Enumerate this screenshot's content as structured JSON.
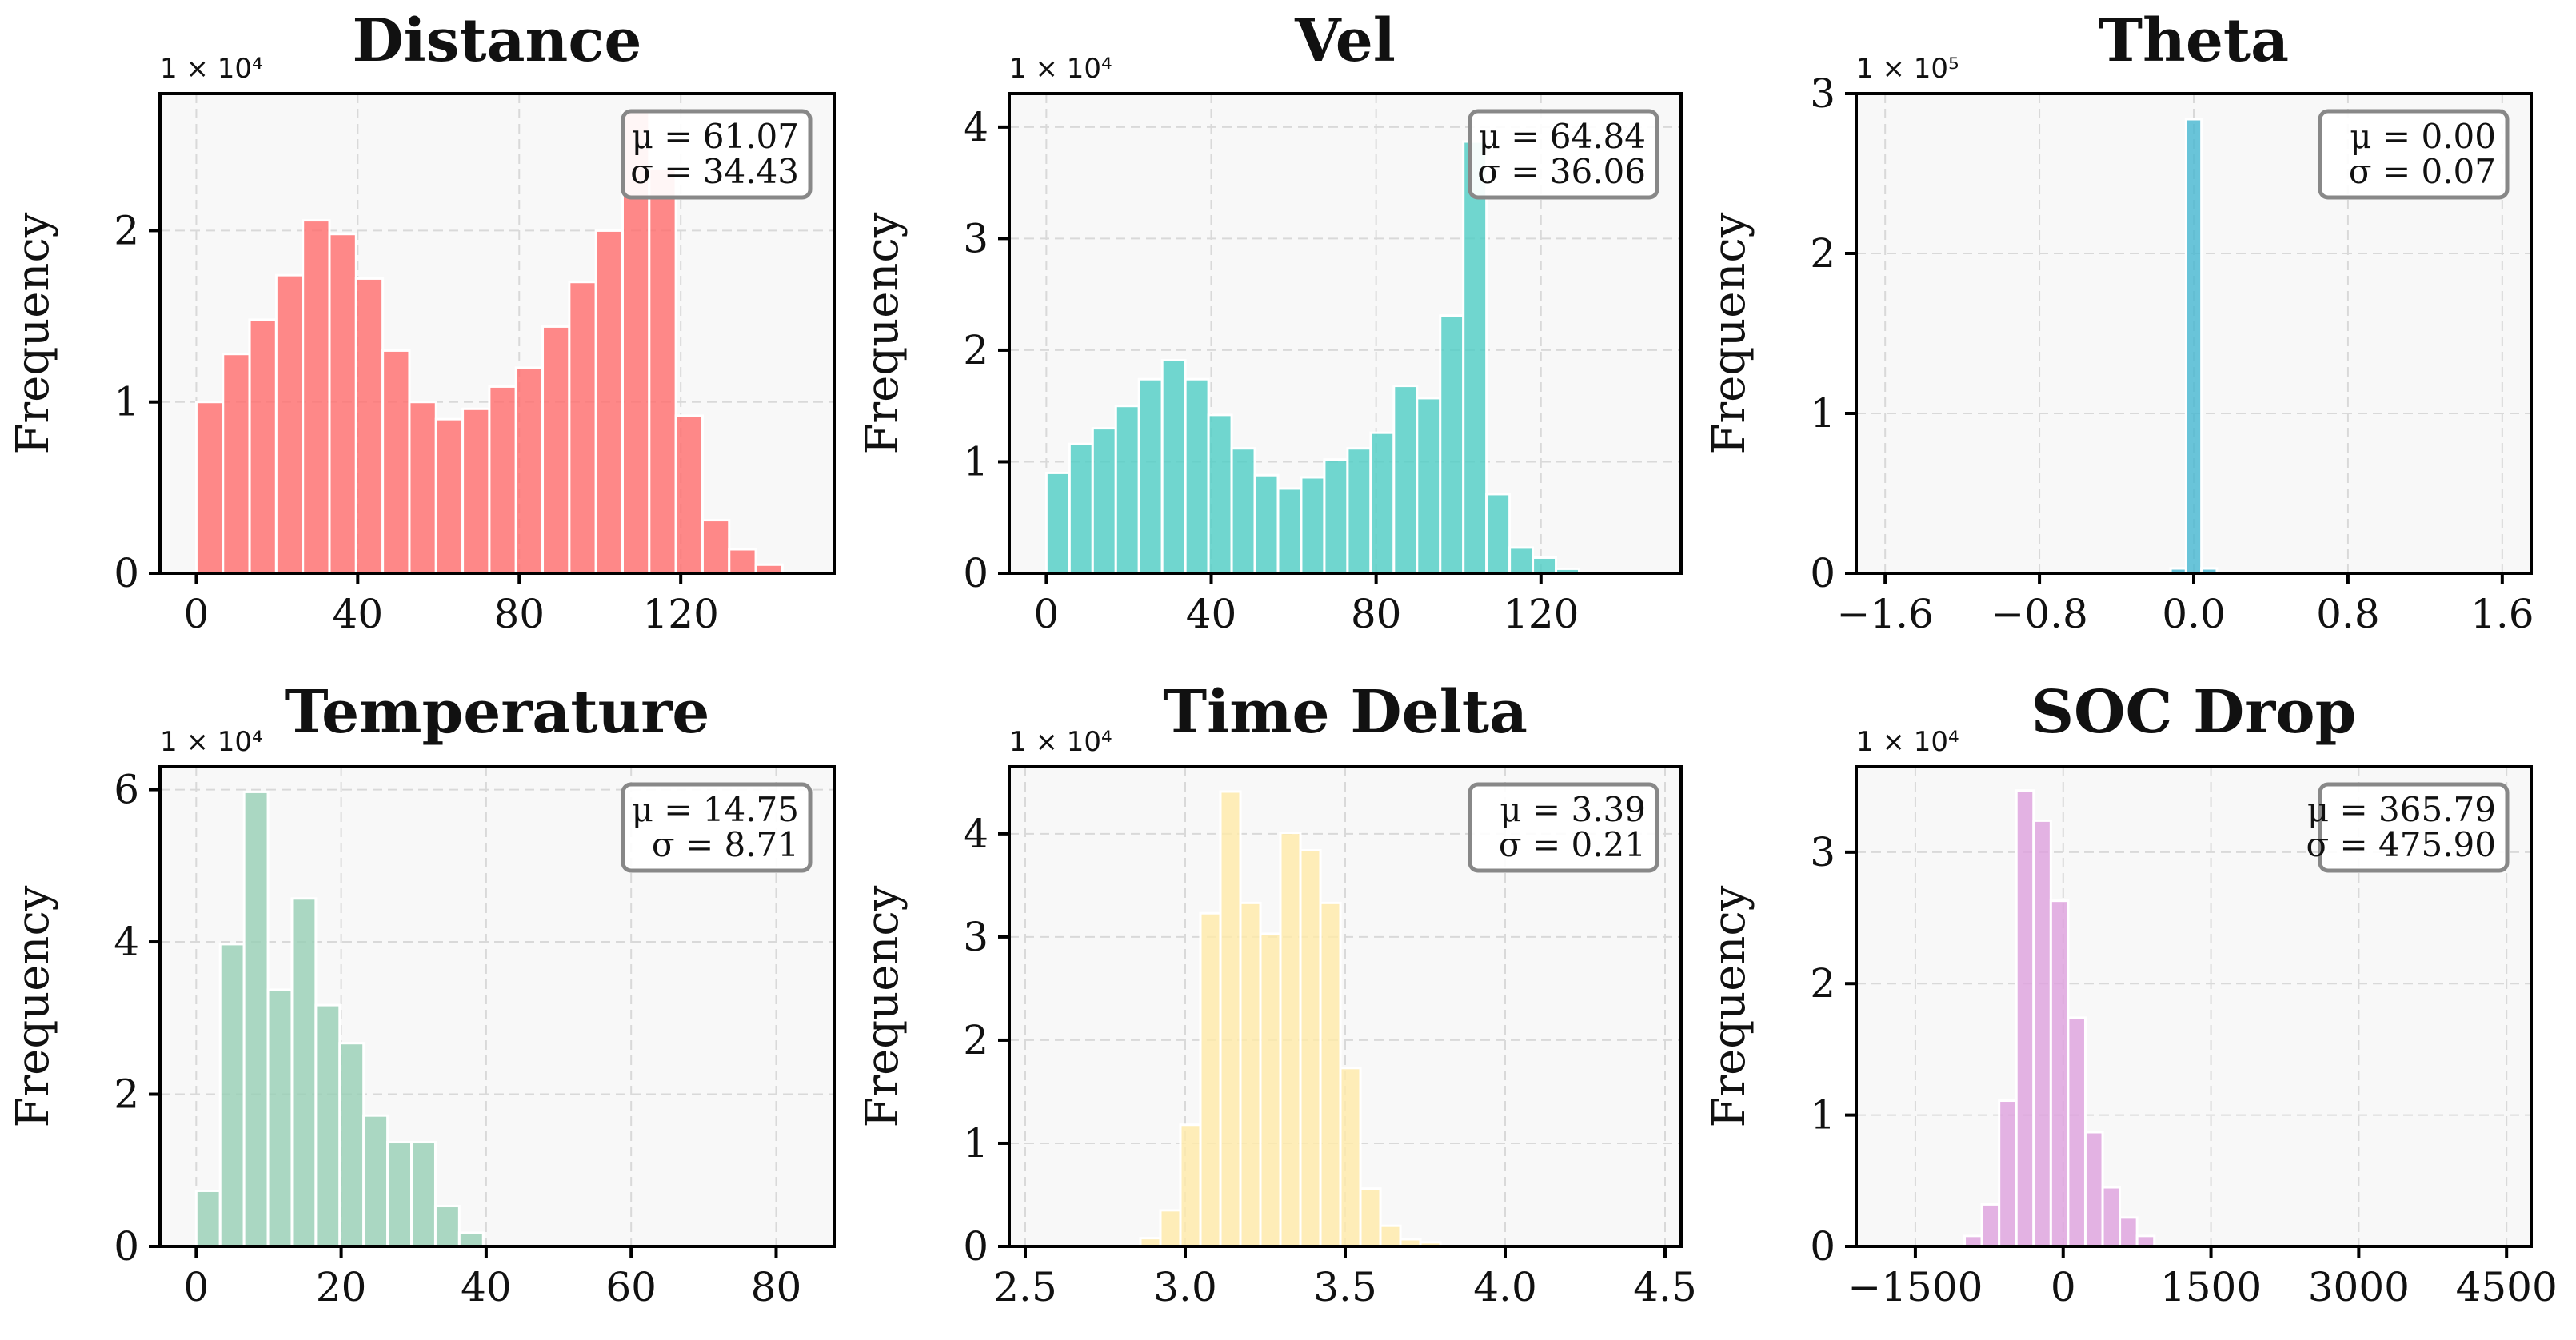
{
  "chart_data": [
    {
      "type": "bar",
      "title": "Distance",
      "ylabel": "Frequency",
      "multiplier_label": "1 × 10⁴",
      "color": "#ff6b6b",
      "xlim": [
        -9,
        158
      ],
      "ylim": [
        0,
        2.8
      ],
      "xticks": [
        0,
        40,
        80,
        120
      ],
      "xtick_labels": [
        "0",
        "40",
        "80",
        "120"
      ],
      "yticks": [
        0,
        1,
        2
      ],
      "ytick_labels": [
        "0",
        "1",
        "2"
      ],
      "bin_start": 0,
      "bin_width": 6.6,
      "values": [
        1.0,
        1.28,
        1.48,
        1.74,
        2.06,
        1.98,
        1.72,
        1.3,
        1.0,
        0.9,
        0.96,
        1.09,
        1.2,
        1.44,
        1.7,
        2.0,
        2.7,
        2.36,
        0.92,
        0.31,
        0.14,
        0.05
      ],
      "stats": {
        "mean": "μ = 61.07",
        "std": "σ = 34.43"
      },
      "stats_align": "right"
    },
    {
      "type": "bar",
      "title": "Vel",
      "ylabel": "Frequency",
      "multiplier_label": "1 × 10⁴",
      "color": "#4ecdc4",
      "xlim": [
        -9,
        154
      ],
      "ylim": [
        0,
        4.3
      ],
      "xticks": [
        0,
        40,
        80,
        120
      ],
      "xtick_labels": [
        "0",
        "40",
        "80",
        "120"
      ],
      "yticks": [
        0,
        1,
        2,
        3,
        4
      ],
      "ytick_labels": [
        "0",
        "1",
        "2",
        "3",
        "4"
      ],
      "bin_start": 0,
      "bin_width": 5.62,
      "values": [
        0.9,
        1.16,
        1.3,
        1.5,
        1.74,
        1.91,
        1.74,
        1.42,
        1.12,
        0.88,
        0.76,
        0.86,
        1.02,
        1.12,
        1.26,
        1.68,
        1.57,
        2.31,
        3.87,
        0.71,
        0.23,
        0.14,
        0.04
      ],
      "stats": {
        "mean": "μ = 64.84",
        "std": "σ = 36.06"
      },
      "stats_align": "right"
    },
    {
      "type": "bar",
      "title": "Theta",
      "ylabel": "Frequency",
      "multiplier_label": "1 × 10⁵",
      "color": "#45b7d1",
      "xlim": [
        -1.75,
        1.75
      ],
      "ylim": [
        0,
        3.0
      ],
      "xticks": [
        -1.6,
        -0.8,
        0.0,
        0.8,
        1.6
      ],
      "xtick_labels": [
        "−1.6",
        "−0.8",
        "0.0",
        "0.8",
        "1.6"
      ],
      "yticks": [
        0,
        1,
        2,
        3
      ],
      "ytick_labels": [
        "0",
        "1",
        "2",
        "3"
      ],
      "bin_start": -0.12,
      "bin_width": 0.08,
      "values": [
        0.03,
        2.84,
        0.03
      ],
      "stats": {
        "mean": "μ = 0.00",
        "std": "σ = 0.07"
      },
      "stats_align": "right"
    },
    {
      "type": "bar",
      "title": "Temperature",
      "ylabel": "Frequency",
      "multiplier_label": "1 × 10⁴",
      "color": "#96ceb4",
      "xlim": [
        -5,
        88
      ],
      "ylim": [
        0,
        6.3
      ],
      "xticks": [
        0,
        20,
        40,
        60,
        80
      ],
      "xtick_labels": [
        "0",
        "20",
        "40",
        "60",
        "80"
      ],
      "yticks": [
        0,
        2,
        4,
        6
      ],
      "ytick_labels": [
        "0",
        "2",
        "4",
        "6"
      ],
      "bin_start": 0,
      "bin_width": 3.3,
      "values": [
        0.73,
        3.97,
        5.97,
        3.37,
        4.57,
        3.17,
        2.67,
        1.72,
        1.37,
        1.37,
        0.53,
        0.18
      ],
      "stats": {
        "mean": "μ = 14.75",
        "std": "σ = 8.71"
      },
      "stats_align": "right"
    },
    {
      "type": "bar",
      "title": "Time Delta",
      "ylabel": "Frequency",
      "multiplier_label": "1 × 10⁴",
      "color": "#ffeaa7",
      "xlim": [
        2.45,
        4.55
      ],
      "ylim": [
        0,
        4.65
      ],
      "xticks": [
        2.5,
        3.0,
        3.5,
        4.0,
        4.5
      ],
      "xtick_labels": [
        "2.5",
        "3.0",
        "3.5",
        "4.0",
        "4.5"
      ],
      "yticks": [
        0,
        1,
        2,
        3,
        4
      ],
      "ytick_labels": [
        "0",
        "1",
        "2",
        "3",
        "4"
      ],
      "bin_start": 2.86,
      "bin_width": 0.0625,
      "values": [
        0.08,
        0.35,
        1.18,
        3.23,
        4.41,
        3.33,
        3.03,
        4.01,
        3.84,
        3.33,
        1.73,
        0.56,
        0.2,
        0.07,
        0.04
      ],
      "stats": {
        "mean": "μ = 3.39",
        "std": "σ = 0.21"
      },
      "stats_align": "right"
    },
    {
      "type": "bar",
      "title": "SOC Drop",
      "ylabel": "Frequency",
      "multiplier_label": "1 × 10⁴",
      "color": "#dda0dd",
      "xlim": [
        -2100,
        4750
      ],
      "ylim": [
        0,
        3.65
      ],
      "xticks": [
        -1500,
        0,
        1500,
        3000,
        4500
      ],
      "xtick_labels": [
        "−1500",
        "0",
        "1500",
        "3000",
        "4500"
      ],
      "yticks": [
        0,
        1,
        2,
        3
      ],
      "ytick_labels": [
        "0",
        "1",
        "2",
        "3"
      ],
      "bin_start": -1000,
      "bin_width": 175,
      "values": [
        0.08,
        0.32,
        1.11,
        3.47,
        3.24,
        2.63,
        1.74,
        0.87,
        0.45,
        0.22,
        0.08
      ],
      "stats": {
        "mean": "μ = 365.79",
        "std": "σ = 475.90"
      },
      "stats_align": "right"
    }
  ]
}
